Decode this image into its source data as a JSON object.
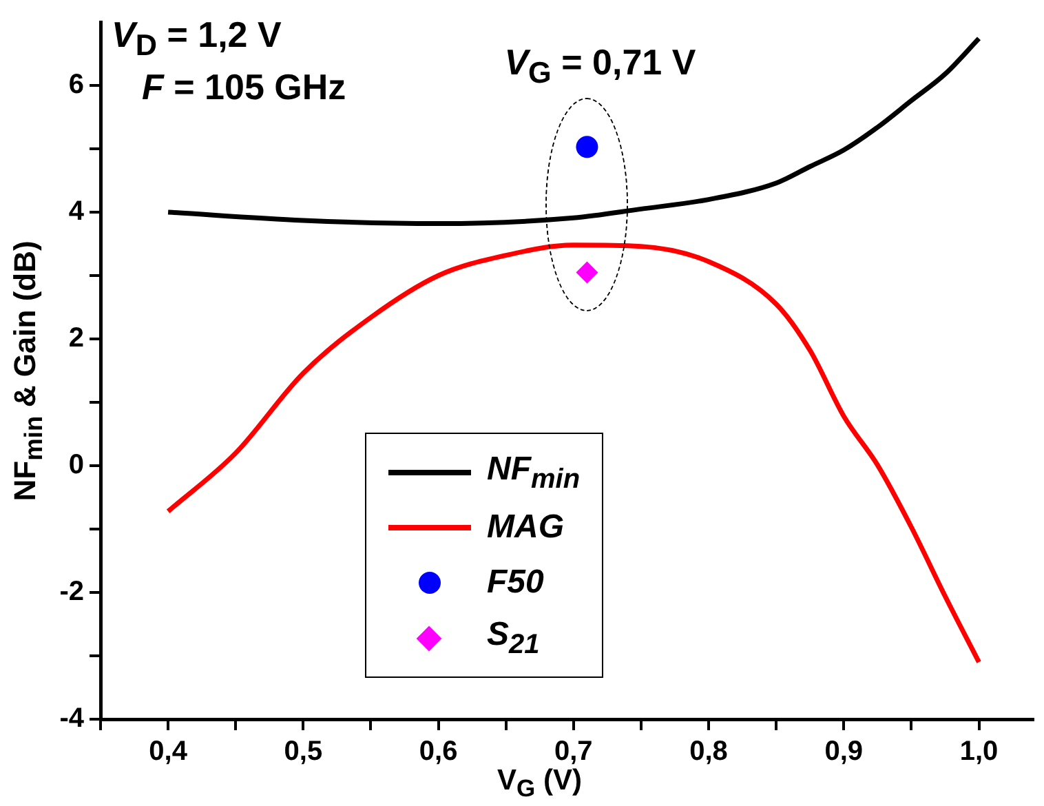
{
  "chart_data": {
    "type": "line",
    "xlabel": "V$_{G}$ (V)",
    "ylabel": "NF$_{min}$ & Gain (dB)",
    "annotations": [
      "V$_{D}$ = 1,2 V",
      "F = 105 GHz",
      "V$_{G}$ = 0,71 V"
    ],
    "xlim": [
      0.35,
      1.04
    ],
    "xticks": [
      {
        "value": 0.35,
        "label": null
      },
      {
        "value": 0.4,
        "label": "0,4"
      },
      {
        "value": 0.45,
        "label": null
      },
      {
        "value": 0.5,
        "label": "0,5"
      },
      {
        "value": 0.55,
        "label": null
      },
      {
        "value": 0.6,
        "label": "0,6"
      },
      {
        "value": 0.65,
        "label": null
      },
      {
        "value": 0.7,
        "label": "0,7"
      },
      {
        "value": 0.75,
        "label": null
      },
      {
        "value": 0.8,
        "label": "0,8"
      },
      {
        "value": 0.85,
        "label": null
      },
      {
        "value": 0.9,
        "label": "0,9"
      },
      {
        "value": 0.95,
        "label": null
      },
      {
        "value": 1.0,
        "label": "1,0"
      }
    ],
    "ylim": [
      -4,
      7
    ],
    "yticks": [
      -4,
      {
        "value": -3,
        "label": null
      },
      -2,
      {
        "value": -1,
        "label": null
      },
      0,
      {
        "value": 1,
        "label": null
      },
      2,
      {
        "value": 3,
        "label": null
      },
      4,
      {
        "value": 5,
        "label": null
      },
      6
    ],
    "grid": false,
    "legend": "bottom",
    "series": [
      {
        "name": "NF$_{min}$",
        "color": "#000000",
        "marker": "none",
        "x": [
          0.4,
          0.5,
          0.6,
          0.7,
          0.75,
          0.8,
          0.85,
          0.875,
          0.9,
          0.925,
          0.95,
          0.975,
          1.0
        ],
        "values": [
          4.0,
          3.87,
          3.82,
          3.91,
          4.05,
          4.2,
          4.46,
          4.72,
          4.98,
          5.34,
          5.76,
          6.18,
          6.74
        ]
      },
      {
        "name": "MAG",
        "color": "#ff0000",
        "marker": "none",
        "x": [
          0.4,
          0.45,
          0.5,
          0.55,
          0.6,
          0.65,
          0.7,
          0.75,
          0.8,
          0.85,
          0.875,
          0.9,
          0.925,
          0.95,
          0.975,
          1.0
        ],
        "values": [
          -0.72,
          0.2,
          1.46,
          2.34,
          3.0,
          3.32,
          3.48,
          3.46,
          3.22,
          2.55,
          1.82,
          0.78,
          0.01,
          -0.97,
          -2.06,
          -3.1
        ]
      },
      {
        "name": "F50",
        "type": "scatter",
        "color": "#0000ff",
        "marker": "circle",
        "x": [
          0.71
        ],
        "values": [
          5.03
        ]
      },
      {
        "name": "S$_{21}$",
        "type": "scatter",
        "color": "#ff00ff",
        "marker": "diamond",
        "x": [
          0.71
        ],
        "values": [
          3.05
        ]
      }
    ]
  }
}
